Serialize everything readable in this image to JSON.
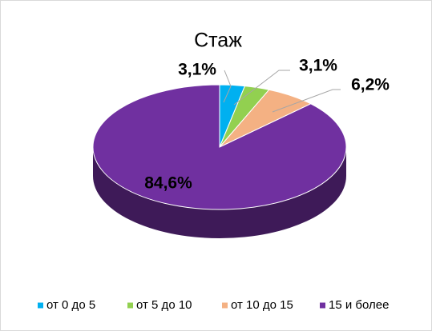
{
  "chart_data": {
    "type": "pie3d",
    "title": "Стаж",
    "categories": [
      "от 0 до 5",
      "от 5 до 10",
      "от 10 до 15",
      "15 и более"
    ],
    "values": [
      3.1,
      3.1,
      6.2,
      84.6
    ],
    "value_labels": [
      "3,1%",
      "3,1%",
      "6,2%",
      "84,6%"
    ],
    "colors": [
      "#00b0f0",
      "#92d050",
      "#f4b183",
      "#7030a0"
    ],
    "legend": "bottom"
  }
}
